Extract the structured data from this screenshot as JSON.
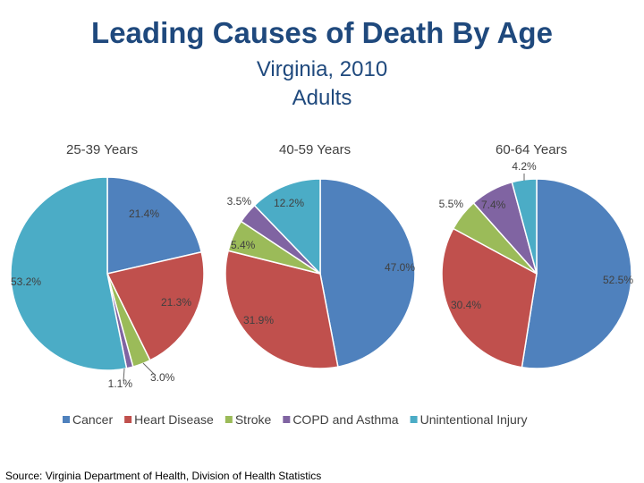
{
  "title": "Leading Causes of Death By Age",
  "subtitle1": "Virginia, 2010",
  "subtitle2": "Adults",
  "source": "Source: Virginia Department of Health, Division of Health Statistics",
  "chart_data": [
    {
      "type": "pie",
      "title": "25-39 Years",
      "categories": [
        "Cancer",
        "Heart Disease",
        "Stroke",
        "COPD and Asthma",
        "Unintentional Injury"
      ],
      "values": [
        21.4,
        21.3,
        3.0,
        1.1,
        53.2
      ],
      "labels": [
        "21.4%",
        "21.3%",
        "3.0%",
        "1.1%",
        "53.2%"
      ]
    },
    {
      "type": "pie",
      "title": "40-59 Years",
      "categories": [
        "Cancer",
        "Heart Disease",
        "Stroke",
        "COPD and Asthma",
        "Unintentional Injury"
      ],
      "values": [
        47.0,
        31.9,
        5.4,
        3.5,
        12.2
      ],
      "labels": [
        "47.0%",
        "31.9%",
        "5.4%",
        "3.5%",
        "12.2%"
      ]
    },
    {
      "type": "pie",
      "title": "60-64 Years",
      "categories": [
        "Cancer",
        "Heart Disease",
        "Stroke",
        "COPD and Asthma",
        "Unintentional Injury"
      ],
      "values": [
        52.5,
        30.4,
        5.5,
        7.4,
        4.2
      ],
      "labels": [
        "52.5%",
        "30.4%",
        "5.5%",
        "7.4%",
        "4.2%"
      ]
    }
  ],
  "legend": {
    "placement": "bottom",
    "items": [
      {
        "label": "Cancer",
        "color": "#4f81bd"
      },
      {
        "label": "Heart Disease",
        "color": "#c0504d"
      },
      {
        "label": "Stroke",
        "color": "#9bbb59"
      },
      {
        "label": "COPD and Asthma",
        "color": "#8064a2"
      },
      {
        "label": "Unintentional Injury",
        "color": "#4bacc6"
      }
    ]
  }
}
